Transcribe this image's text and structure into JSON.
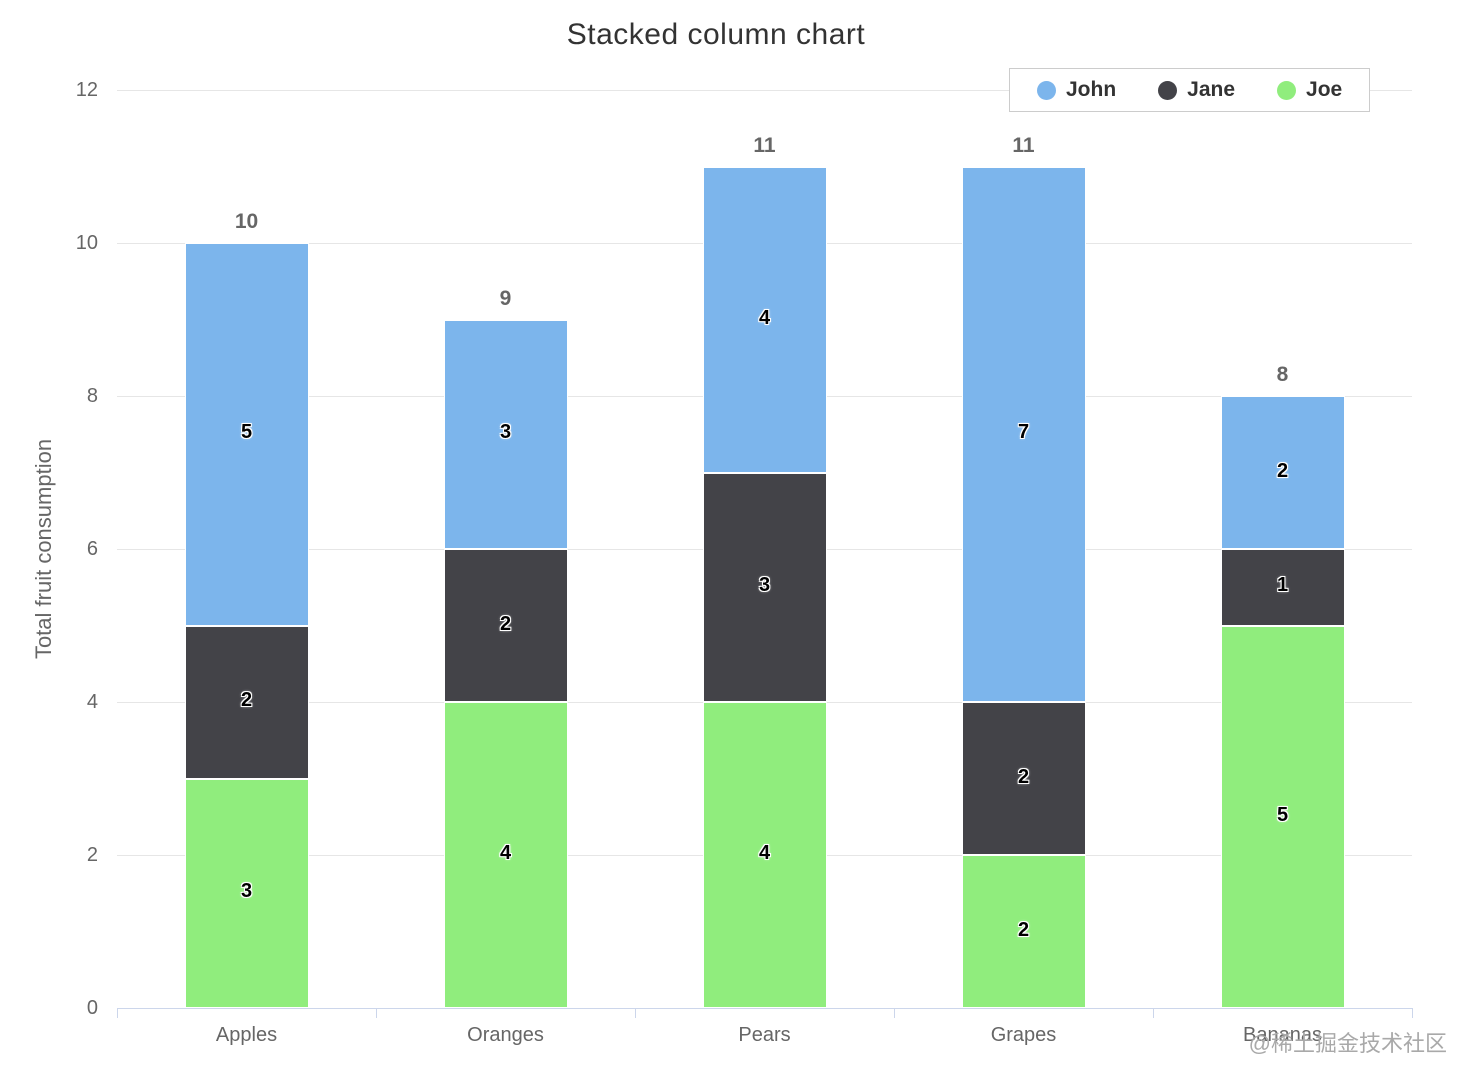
{
  "header": {
    "title": "Stacked column chart",
    "menu_icon": "hamburger-menu-icon"
  },
  "legend": {
    "position": "top-right",
    "items": [
      {
        "label": "John",
        "color": "#7cb5ec"
      },
      {
        "label": "Jane",
        "color": "#434348"
      },
      {
        "label": "Joe",
        "color": "#90ed7d"
      }
    ]
  },
  "watermark": "@稀土掘金技术社区",
  "chart_data": {
    "type": "bar",
    "stacked": true,
    "title": "Stacked column chart",
    "categories": [
      "Apples",
      "Oranges",
      "Pears",
      "Grapes",
      "Bananas"
    ],
    "series": [
      {
        "name": "John",
        "color": "#7cb5ec",
        "values": [
          5,
          3,
          4,
          7,
          2
        ]
      },
      {
        "name": "Jane",
        "color": "#434348",
        "values": [
          2,
          2,
          3,
          2,
          1
        ]
      },
      {
        "name": "Joe",
        "color": "#90ed7d",
        "values": [
          3,
          4,
          4,
          2,
          5
        ]
      }
    ],
    "stack_totals": [
      10,
      9,
      11,
      11,
      8
    ],
    "xlabel": "",
    "ylabel": "Total fruit consumption",
    "ylim": [
      0,
      12
    ],
    "yticks": [
      0,
      2,
      4,
      6,
      8,
      10,
      12
    ],
    "grid": true,
    "legend_position": "top-right",
    "colors": {
      "grid": "#e6e6e6",
      "axis_line": "#ccd6eb",
      "tick_label": "#666666",
      "axis_title": "#666666",
      "title": "#333333",
      "stack_label": "#666666",
      "data_label": "#000000"
    }
  }
}
